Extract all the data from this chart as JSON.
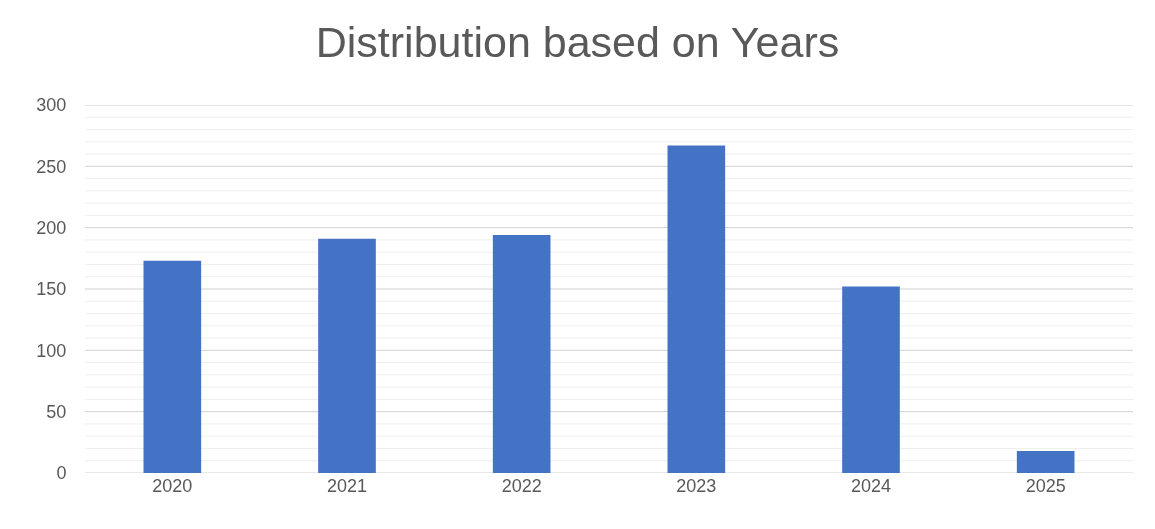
{
  "chart_data": {
    "type": "bar",
    "title": "Distribution based on Years",
    "categories": [
      "2020",
      "2021",
      "2022",
      "2023",
      "2024",
      "2025"
    ],
    "values": [
      173,
      191,
      194,
      267,
      152,
      18
    ],
    "color": "#4472c4",
    "ylim": [
      0,
      300
    ],
    "yticks": [
      0,
      50,
      100,
      150,
      200,
      250,
      300
    ],
    "grid": "y"
  }
}
